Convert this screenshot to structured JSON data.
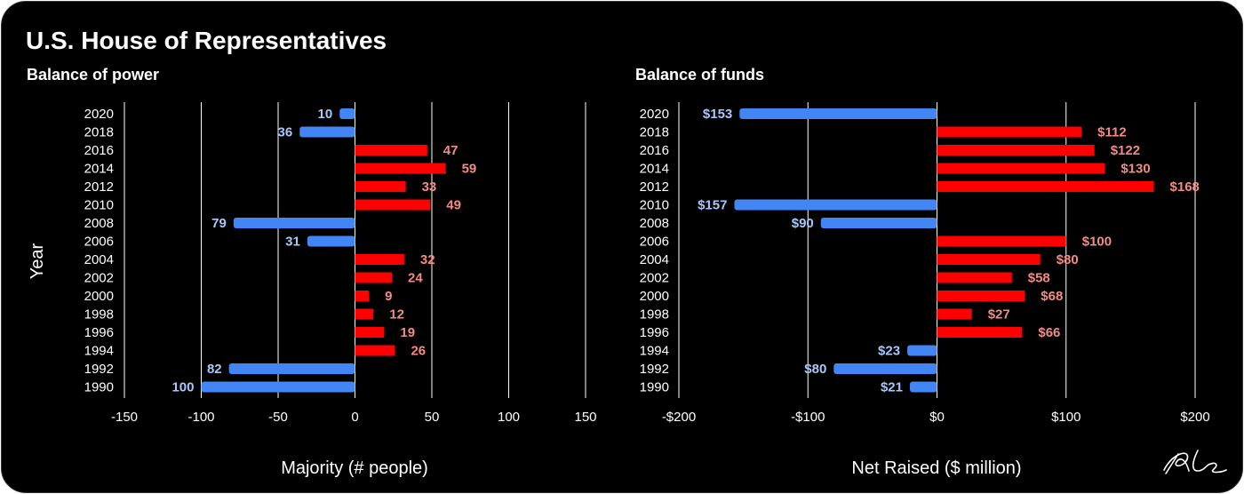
{
  "title": "U.S. House of Representatives",
  "signature": "RL",
  "colors": {
    "background": "#000000",
    "positive_bar": "#ff0000",
    "negative_bar": "#4285f4",
    "positive_label": "#f28b82",
    "negative_label": "#a8c7fa",
    "gridline": "#ffffff"
  },
  "chart_data": [
    {
      "type": "bar",
      "orientation": "horizontal",
      "title": "Balance of power",
      "xlabel": "Majority (# people)",
      "ylabel": "Year",
      "xlim": [
        -150,
        150
      ],
      "xticks": [
        -150,
        -100,
        -50,
        0,
        50,
        100,
        150
      ],
      "xtick_labels": [
        "-150",
        "-100",
        "-50",
        "0",
        "50",
        "100",
        "150"
      ],
      "categories": [
        "2020",
        "2018",
        "2016",
        "2014",
        "2012",
        "2010",
        "2008",
        "2006",
        "2004",
        "2002",
        "2000",
        "1998",
        "1996",
        "1994",
        "1992",
        "1990"
      ],
      "values": [
        -10,
        -36,
        47,
        59,
        33,
        49,
        -79,
        -31,
        32,
        24,
        9,
        12,
        19,
        26,
        -82,
        -100
      ],
      "data_labels": [
        "10",
        "36",
        "47",
        "59",
        "33",
        "49",
        "79",
        "31",
        "32",
        "24",
        "9",
        "12",
        "19",
        "26",
        "82",
        "100"
      ],
      "grid": true,
      "legend": "none"
    },
    {
      "type": "bar",
      "orientation": "horizontal",
      "title": "Balance of funds",
      "xlabel": "Net Raised ($ million)",
      "ylabel": "",
      "xlim": [
        -200,
        200
      ],
      "xticks": [
        -200,
        -100,
        0,
        100,
        200
      ],
      "xtick_labels": [
        "-$200",
        "-$100",
        "$0",
        "$100",
        "$200"
      ],
      "categories": [
        "2020",
        "2018",
        "2016",
        "2014",
        "2012",
        "2010",
        "2008",
        "2006",
        "2004",
        "2002",
        "2000",
        "1998",
        "1996",
        "1994",
        "1992",
        "1990"
      ],
      "values": [
        -153,
        112,
        122,
        130,
        168,
        -157,
        -90,
        100,
        80,
        58,
        68,
        27,
        66,
        -23,
        -80,
        -21
      ],
      "data_labels": [
        "$153",
        "$112",
        "$122",
        "$130",
        "$168",
        "$157",
        "$90",
        "$100",
        "$80",
        "$58",
        "$68",
        "$27",
        "$66",
        "$23",
        "$80",
        "$21"
      ],
      "grid": true,
      "legend": "none"
    }
  ]
}
